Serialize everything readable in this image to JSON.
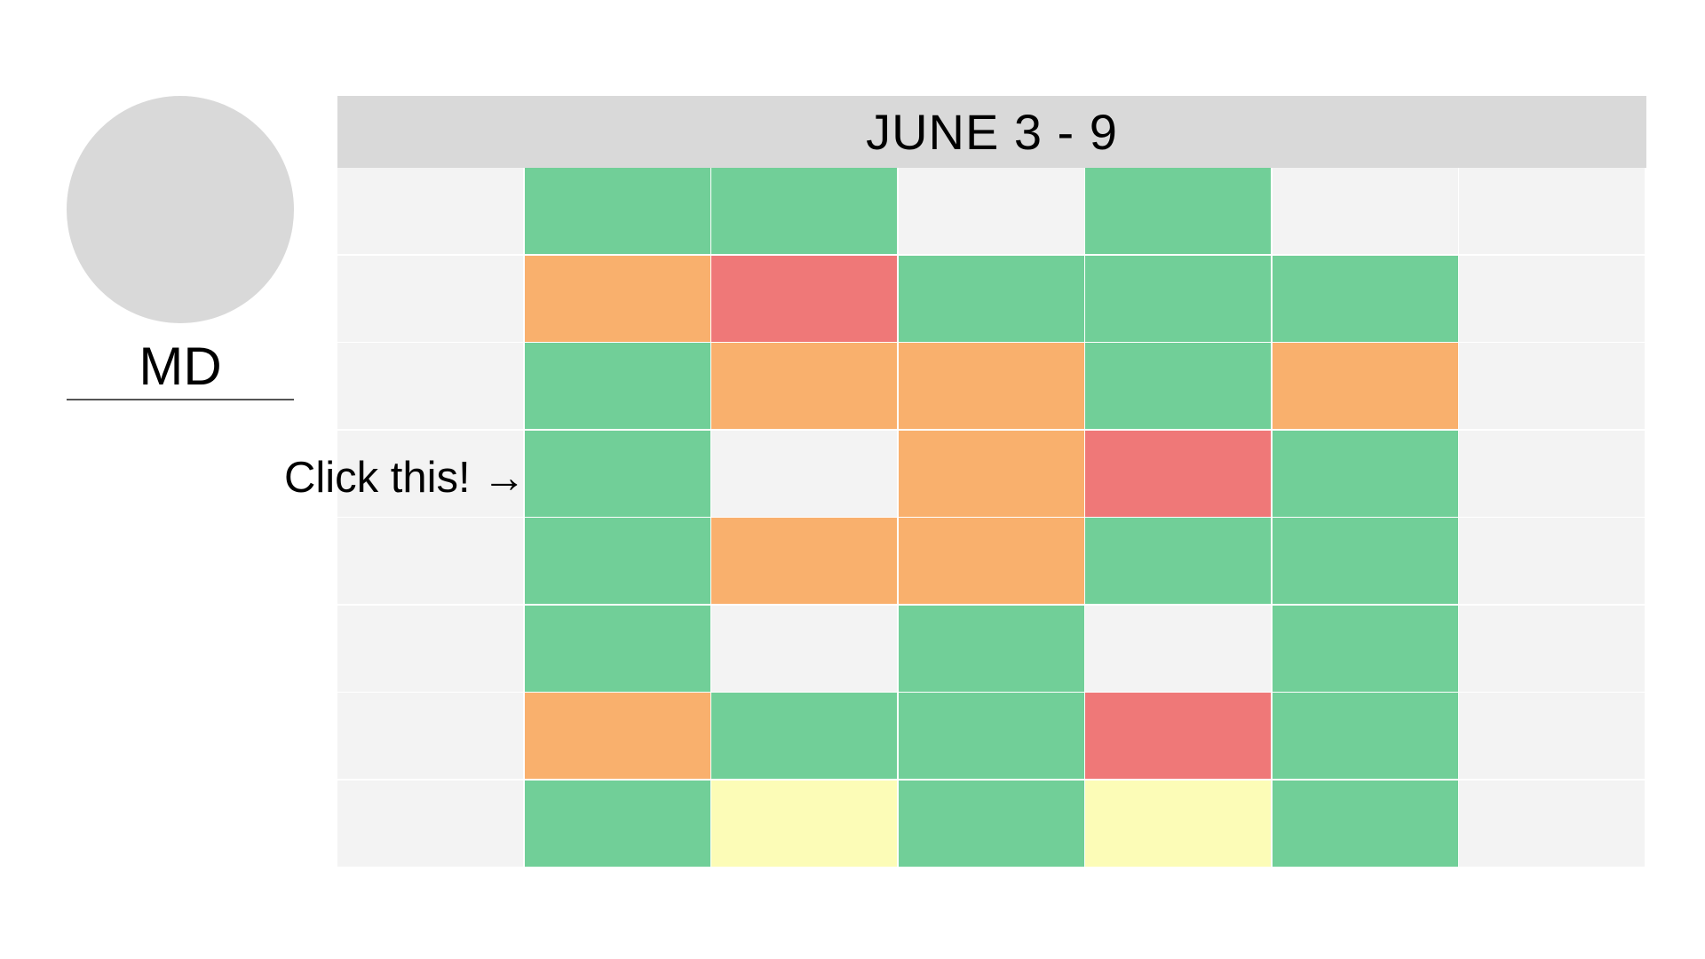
{
  "profile": {
    "initials": "MD"
  },
  "hint": {
    "text": "Click this! →"
  },
  "schedule": {
    "week_label": "JUNE 3 - 9",
    "colors": {
      "empty": "#f3f3f3",
      "green": "#71cf98",
      "orange": "#f9b06d",
      "red": "#ef7878",
      "yellow": "#fcfcb7"
    },
    "rows": [
      [
        "empty",
        "green",
        "green",
        "empty",
        "green",
        "empty",
        "empty"
      ],
      [
        "empty",
        "orange",
        "red",
        "green",
        "green",
        "green",
        "empty"
      ],
      [
        "empty",
        "green",
        "orange",
        "orange",
        "green",
        "orange",
        "empty"
      ],
      [
        "empty",
        "green",
        "empty",
        "orange",
        "red",
        "green",
        "empty"
      ],
      [
        "empty",
        "green",
        "orange",
        "orange",
        "green",
        "green",
        "empty"
      ],
      [
        "empty",
        "green",
        "empty",
        "green",
        "empty",
        "green",
        "empty"
      ],
      [
        "empty",
        "orange",
        "green",
        "green",
        "red",
        "green",
        "empty"
      ],
      [
        "empty",
        "green",
        "yellow",
        "green",
        "yellow",
        "green",
        "empty"
      ]
    ]
  }
}
